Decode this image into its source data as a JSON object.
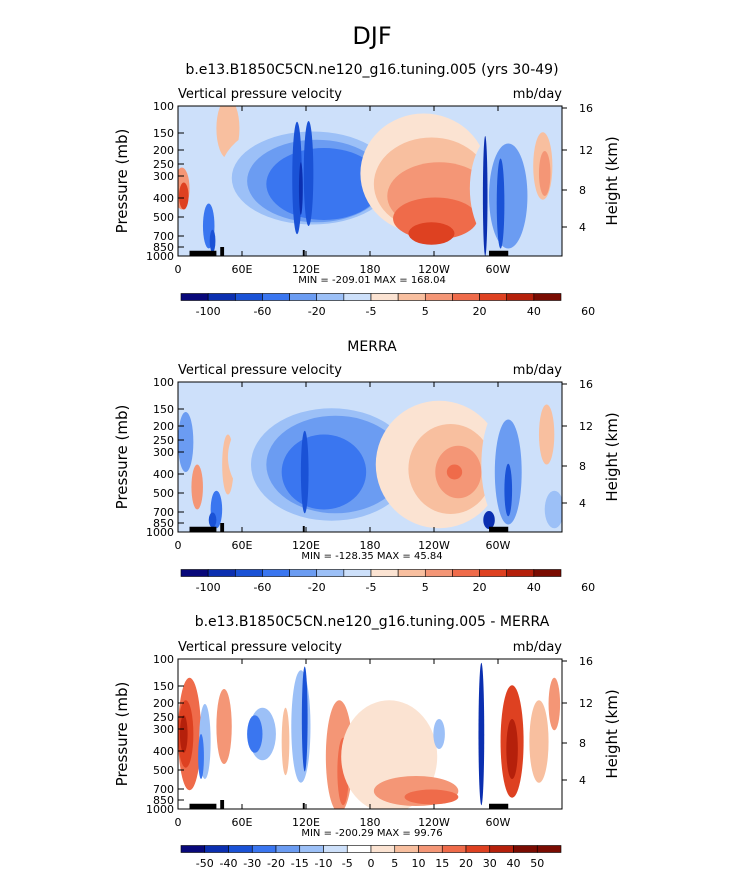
{
  "page_title": "DJF",
  "colors": {
    "anomaly": [
      "#08087a",
      "#0b2fb0",
      "#1a52d6",
      "#3a76f0",
      "#6b9cf2",
      "#9cc0f7",
      "#cde0fa",
      "#fbe3d2",
      "#f8bf9f",
      "#f49676",
      "#ef6b4a",
      "#de4121",
      "#b5200b",
      "#7a0c02"
    ],
    "diff": [
      "#08087a",
      "#0b2fb0",
      "#1a52d6",
      "#3a76f0",
      "#6b9cf2",
      "#9cc0f7",
      "#cde0fa",
      "#ffffff",
      "#fbe3d2",
      "#f8bf9f",
      "#f49676",
      "#ef6b4a",
      "#de4121",
      "#b5200b",
      "#7a0c02"
    ],
    "topography": "#000000"
  },
  "chart_data": [
    {
      "type": "heatmap",
      "title": "b.e13.B1850C5CN.ne120_g16.tuning.005 (yrs 30-49)",
      "variable": "Vertical pressure velocity",
      "units": "mb/day",
      "ylabel": "Pressure (mb)",
      "y2label": "Height (km)",
      "yticks": [
        "100",
        "150",
        "200",
        "250",
        "300",
        "400",
        "500",
        "700",
        "850",
        "1000"
      ],
      "y2ticks": [
        "16",
        "12",
        "8",
        "4"
      ],
      "xticks": [
        "0",
        "60E",
        "120E",
        "180",
        "120W",
        "60W"
      ],
      "stats": "MIN = -209.01   MAX = 168.04",
      "colorbar_labels": [
        "-100",
        "-60",
        "-20",
        "-5",
        "5",
        "20",
        "40",
        "60"
      ],
      "colorbar_levels": 14
    },
    {
      "type": "heatmap",
      "title": "MERRA",
      "variable": "Vertical pressure velocity",
      "units": "mb/day",
      "ylabel": "Pressure (mb)",
      "y2label": "Height (km)",
      "yticks": [
        "100",
        "150",
        "200",
        "250",
        "300",
        "400",
        "500",
        "700",
        "850",
        "1000"
      ],
      "y2ticks": [
        "16",
        "12",
        "8",
        "4"
      ],
      "xticks": [
        "0",
        "60E",
        "120E",
        "180",
        "120W",
        "60W"
      ],
      "stats": "MIN = -128.35   MAX =  45.84",
      "colorbar_labels": [
        "-100",
        "-60",
        "-20",
        "-5",
        "5",
        "20",
        "40",
        "60"
      ],
      "colorbar_levels": 14
    },
    {
      "type": "heatmap",
      "title": "b.e13.B1850C5CN.ne120_g16.tuning.005 - MERRA",
      "variable": "Vertical pressure velocity",
      "units": "mb/day",
      "ylabel": "Pressure (mb)",
      "y2label": "Height (km)",
      "yticks": [
        "100",
        "150",
        "200",
        "250",
        "300",
        "400",
        "500",
        "700",
        "850",
        "1000"
      ],
      "y2ticks": [
        "16",
        "12",
        "8",
        "4"
      ],
      "xticks": [
        "0",
        "60E",
        "120E",
        "180",
        "120W",
        "60W"
      ],
      "stats": "MIN = -200.29   MAX =  99.76",
      "colorbar_labels": [
        "-50",
        "-40",
        "-30",
        "-20",
        "-15",
        "-10",
        "-5",
        "0",
        "5",
        "10",
        "15",
        "20",
        "30",
        "40",
        "50"
      ],
      "colorbar_levels": 16
    }
  ]
}
